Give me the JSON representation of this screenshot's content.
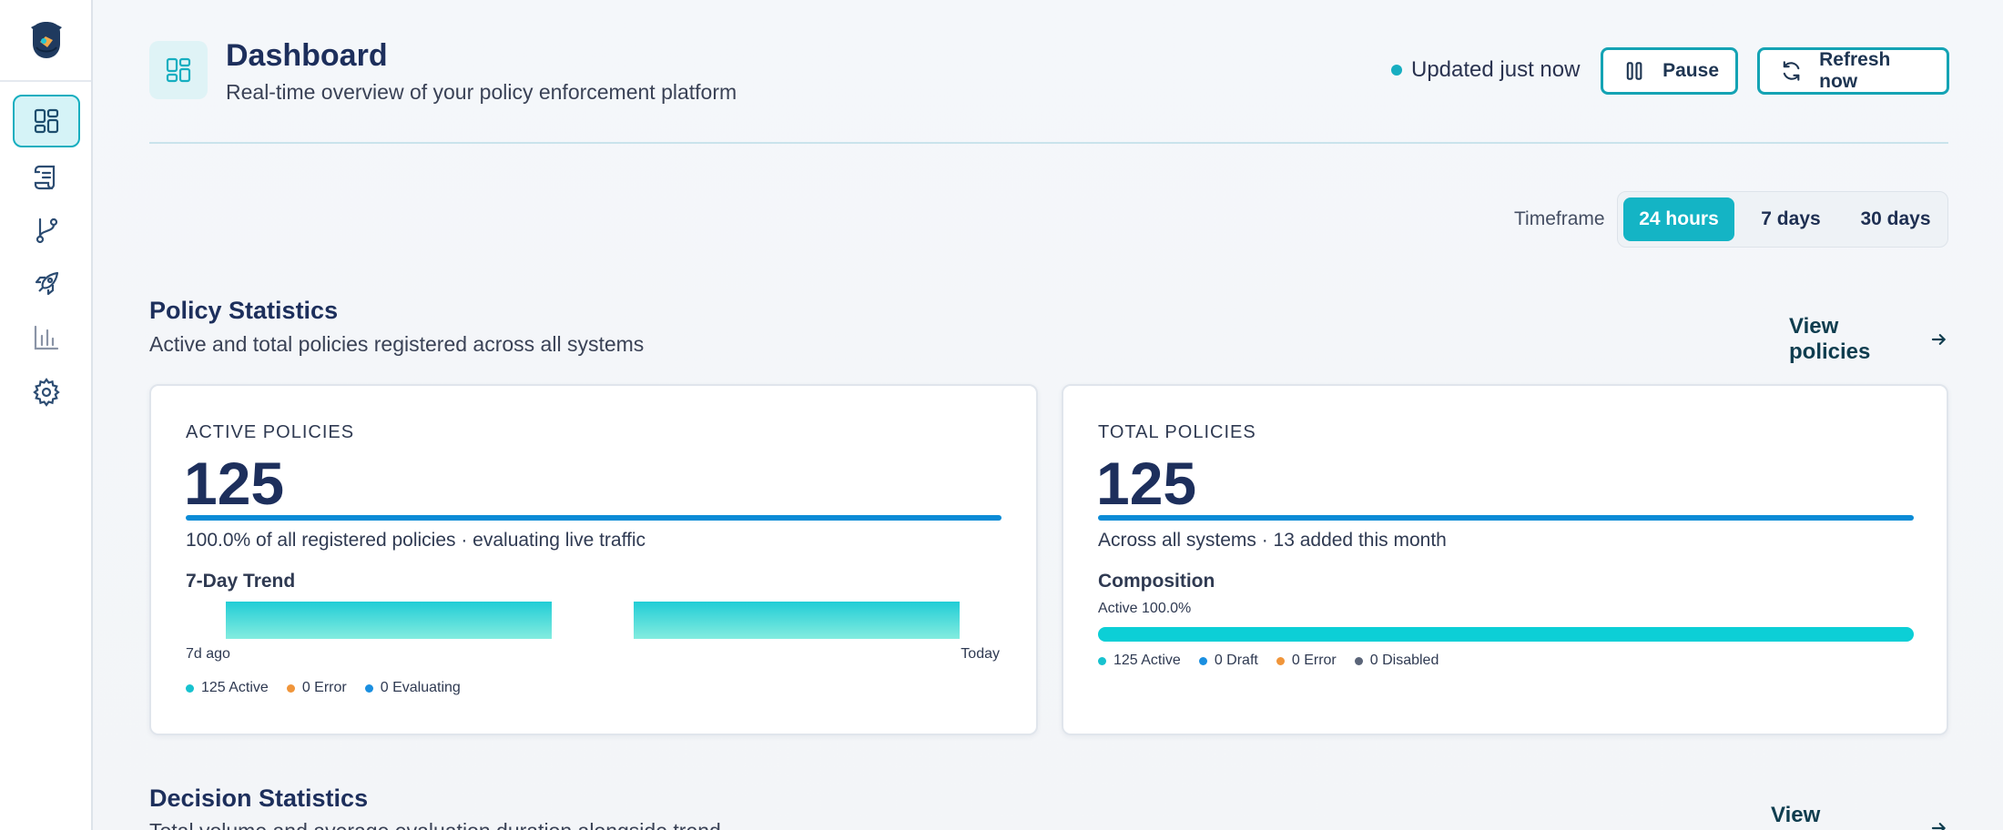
{
  "header": {
    "title": "Dashboard",
    "subtitle": "Real-time overview of your policy enforcement platform",
    "status": "Updated just now",
    "pause_label": "Pause",
    "refresh_label": "Refresh now"
  },
  "sidebar": {
    "items": [
      {
        "icon": "dashboard-icon",
        "active": true
      },
      {
        "icon": "scroll-icon",
        "active": false
      },
      {
        "icon": "git-branch-icon",
        "active": false
      },
      {
        "icon": "rocket-icon",
        "active": false
      },
      {
        "icon": "bar-chart-icon",
        "active": false
      },
      {
        "icon": "gear-icon",
        "active": false
      }
    ]
  },
  "timeframe": {
    "label": "Timeframe",
    "options": [
      "24 hours",
      "7 days",
      "30 days"
    ],
    "selected": "24 hours"
  },
  "policy_section": {
    "title": "Policy Statistics",
    "subtitle": "Active and total policies registered across all systems",
    "link": "View policies"
  },
  "active_card": {
    "label": "ACTIVE POLICIES",
    "value": "125",
    "desc": "100.0% of all registered policies · evaluating live traffic",
    "trend_label": "7-Day Trend",
    "axis_start": "7d ago",
    "axis_end": "Today",
    "legend": [
      "125 Active",
      "0 Error",
      "0 Evaluating"
    ]
  },
  "total_card": {
    "label": "TOTAL POLICIES",
    "value": "125",
    "desc": "Across all systems · 13 added this month",
    "composition_label": "Composition",
    "composition_active": "Active 100.0%",
    "legend": [
      "125 Active",
      "0 Draft",
      "0 Error",
      "0 Disabled"
    ]
  },
  "decision_section": {
    "title": "Decision Statistics",
    "subtitle": "Total volume and average evaluation duration alongside trend",
    "link": "View decisions"
  },
  "colors": {
    "accent": "#14b4c5",
    "active": "#17c2cf",
    "error": "#f0953a",
    "evaluating": "#1a8fe0",
    "disabled": "#5a6478"
  }
}
